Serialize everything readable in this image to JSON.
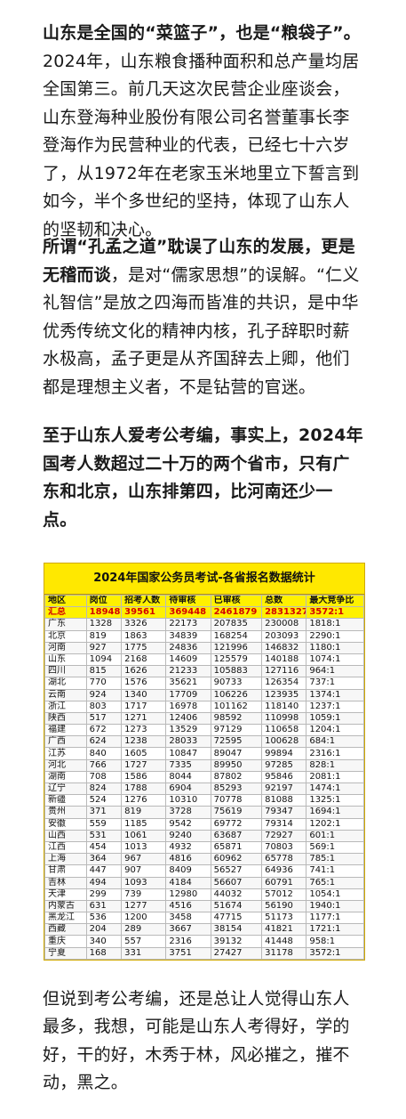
{
  "paragraphs": {
    "p1_bold": "山东是全国的“菜篮子”，也是“粮袋子”。",
    "p1_rest": "2024年，山东粮食播种面积和总产量均居全国第三。前几天这次民营企业座谈会，山东登海种业股份有限公司名誉董事长李登海作为民营种业的代表，已经七十六岁了，从1972年在老家玉米地里立下誓言到如今，半个多世纪的坚持，体现了山东人的坚韧和决心。",
    "p2_bold": "所谓“孔孟之道”耽误了山东的发展，更是无稽而谈",
    "p2_rest": "，是对“儒家思想”的误解。“仁义礼智信”是放之四海而皆准的共识，是中华优秀传统文化的精神内核，孔子辞职时薪水极高，孟子更是从齐国辞去上卿，他们都是理想主义者，不是钻营的官迷。",
    "p3_bold": "至于山东人爱考公考编，事实上，2024年国考人数超过二十万的两个省市，只有广东和北京，山东排第四，比河南还少一点。",
    "p4": "但说到考公考编，还是总让人觉得山东人最多，我想，可能是山东人考得好，学的好，干的好，木秀于林，风必摧之，摧不动，黑之。"
  },
  "table": {
    "title": "2024年国家公务员考试-各省报名数据统计",
    "headers": [
      "地区",
      "岗位",
      "招考人数",
      "待审核",
      "已审核",
      "总数",
      "最大竞争比"
    ],
    "total": [
      "汇总",
      "18948",
      "39561",
      "369448",
      "2461879",
      "2831327",
      "3572:1"
    ],
    "rows": [
      [
        "广东",
        "1328",
        "3326",
        "22173",
        "207835",
        "230008",
        "1818:1"
      ],
      [
        "北京",
        "819",
        "1863",
        "34839",
        "168254",
        "203093",
        "2290:1"
      ],
      [
        "河南",
        "927",
        "1775",
        "24836",
        "121996",
        "146832",
        "1180:1"
      ],
      [
        "山东",
        "1094",
        "2168",
        "14609",
        "125579",
        "140188",
        "1074:1"
      ],
      [
        "四川",
        "815",
        "1626",
        "21233",
        "105883",
        "127116",
        "964:1"
      ],
      [
        "湖北",
        "770",
        "1576",
        "35621",
        "90733",
        "126354",
        "737:1"
      ],
      [
        "云南",
        "924",
        "1340",
        "17709",
        "106226",
        "123935",
        "1374:1"
      ],
      [
        "浙江",
        "803",
        "1717",
        "16978",
        "101162",
        "118140",
        "1237:1"
      ],
      [
        "陕西",
        "517",
        "1271",
        "12406",
        "98592",
        "110998",
        "1059:1"
      ],
      [
        "福建",
        "672",
        "1273",
        "13529",
        "97129",
        "110658",
        "1204:1"
      ],
      [
        "广西",
        "624",
        "1238",
        "28033",
        "72595",
        "100628",
        "684:1"
      ],
      [
        "江苏",
        "840",
        "1605",
        "10847",
        "89047",
        "99894",
        "2316:1"
      ],
      [
        "河北",
        "766",
        "1727",
        "7335",
        "89950",
        "97285",
        "828:1"
      ],
      [
        "湖南",
        "708",
        "1586",
        "8044",
        "87802",
        "95846",
        "2081:1"
      ],
      [
        "辽宁",
        "824",
        "1788",
        "6904",
        "85293",
        "92197",
        "1474:1"
      ],
      [
        "新疆",
        "524",
        "1276",
        "10310",
        "70778",
        "81088",
        "1325:1"
      ],
      [
        "贵州",
        "371",
        "819",
        "3728",
        "75619",
        "79347",
        "1694:1"
      ],
      [
        "安徽",
        "559",
        "1185",
        "9542",
        "69772",
        "79314",
        "1202:1"
      ],
      [
        "山西",
        "531",
        "1061",
        "9240",
        "63687",
        "72927",
        "601:1"
      ],
      [
        "江西",
        "454",
        "1013",
        "4932",
        "65871",
        "70803",
        "569:1"
      ],
      [
        "上海",
        "364",
        "967",
        "4816",
        "60962",
        "65778",
        "785:1"
      ],
      [
        "甘肃",
        "447",
        "907",
        "8409",
        "56527",
        "64936",
        "741:1"
      ],
      [
        "吉林",
        "494",
        "1093",
        "4184",
        "56607",
        "60791",
        "765:1"
      ],
      [
        "天津",
        "299",
        "739",
        "12980",
        "44032",
        "57012",
        "1054:1"
      ],
      [
        "内蒙古",
        "631",
        "1277",
        "4516",
        "51674",
        "56190",
        "1940:1"
      ],
      [
        "黑龙江",
        "536",
        "1200",
        "3458",
        "47715",
        "51173",
        "1177:1"
      ],
      [
        "西藏",
        "204",
        "289",
        "3667",
        "38154",
        "41821",
        "1721:1"
      ],
      [
        "重庆",
        "340",
        "557",
        "2316",
        "39132",
        "41448",
        "958:1"
      ],
      [
        "宁夏",
        "168",
        "331",
        "3751",
        "27427",
        "31178",
        "3572:1"
      ]
    ]
  }
}
